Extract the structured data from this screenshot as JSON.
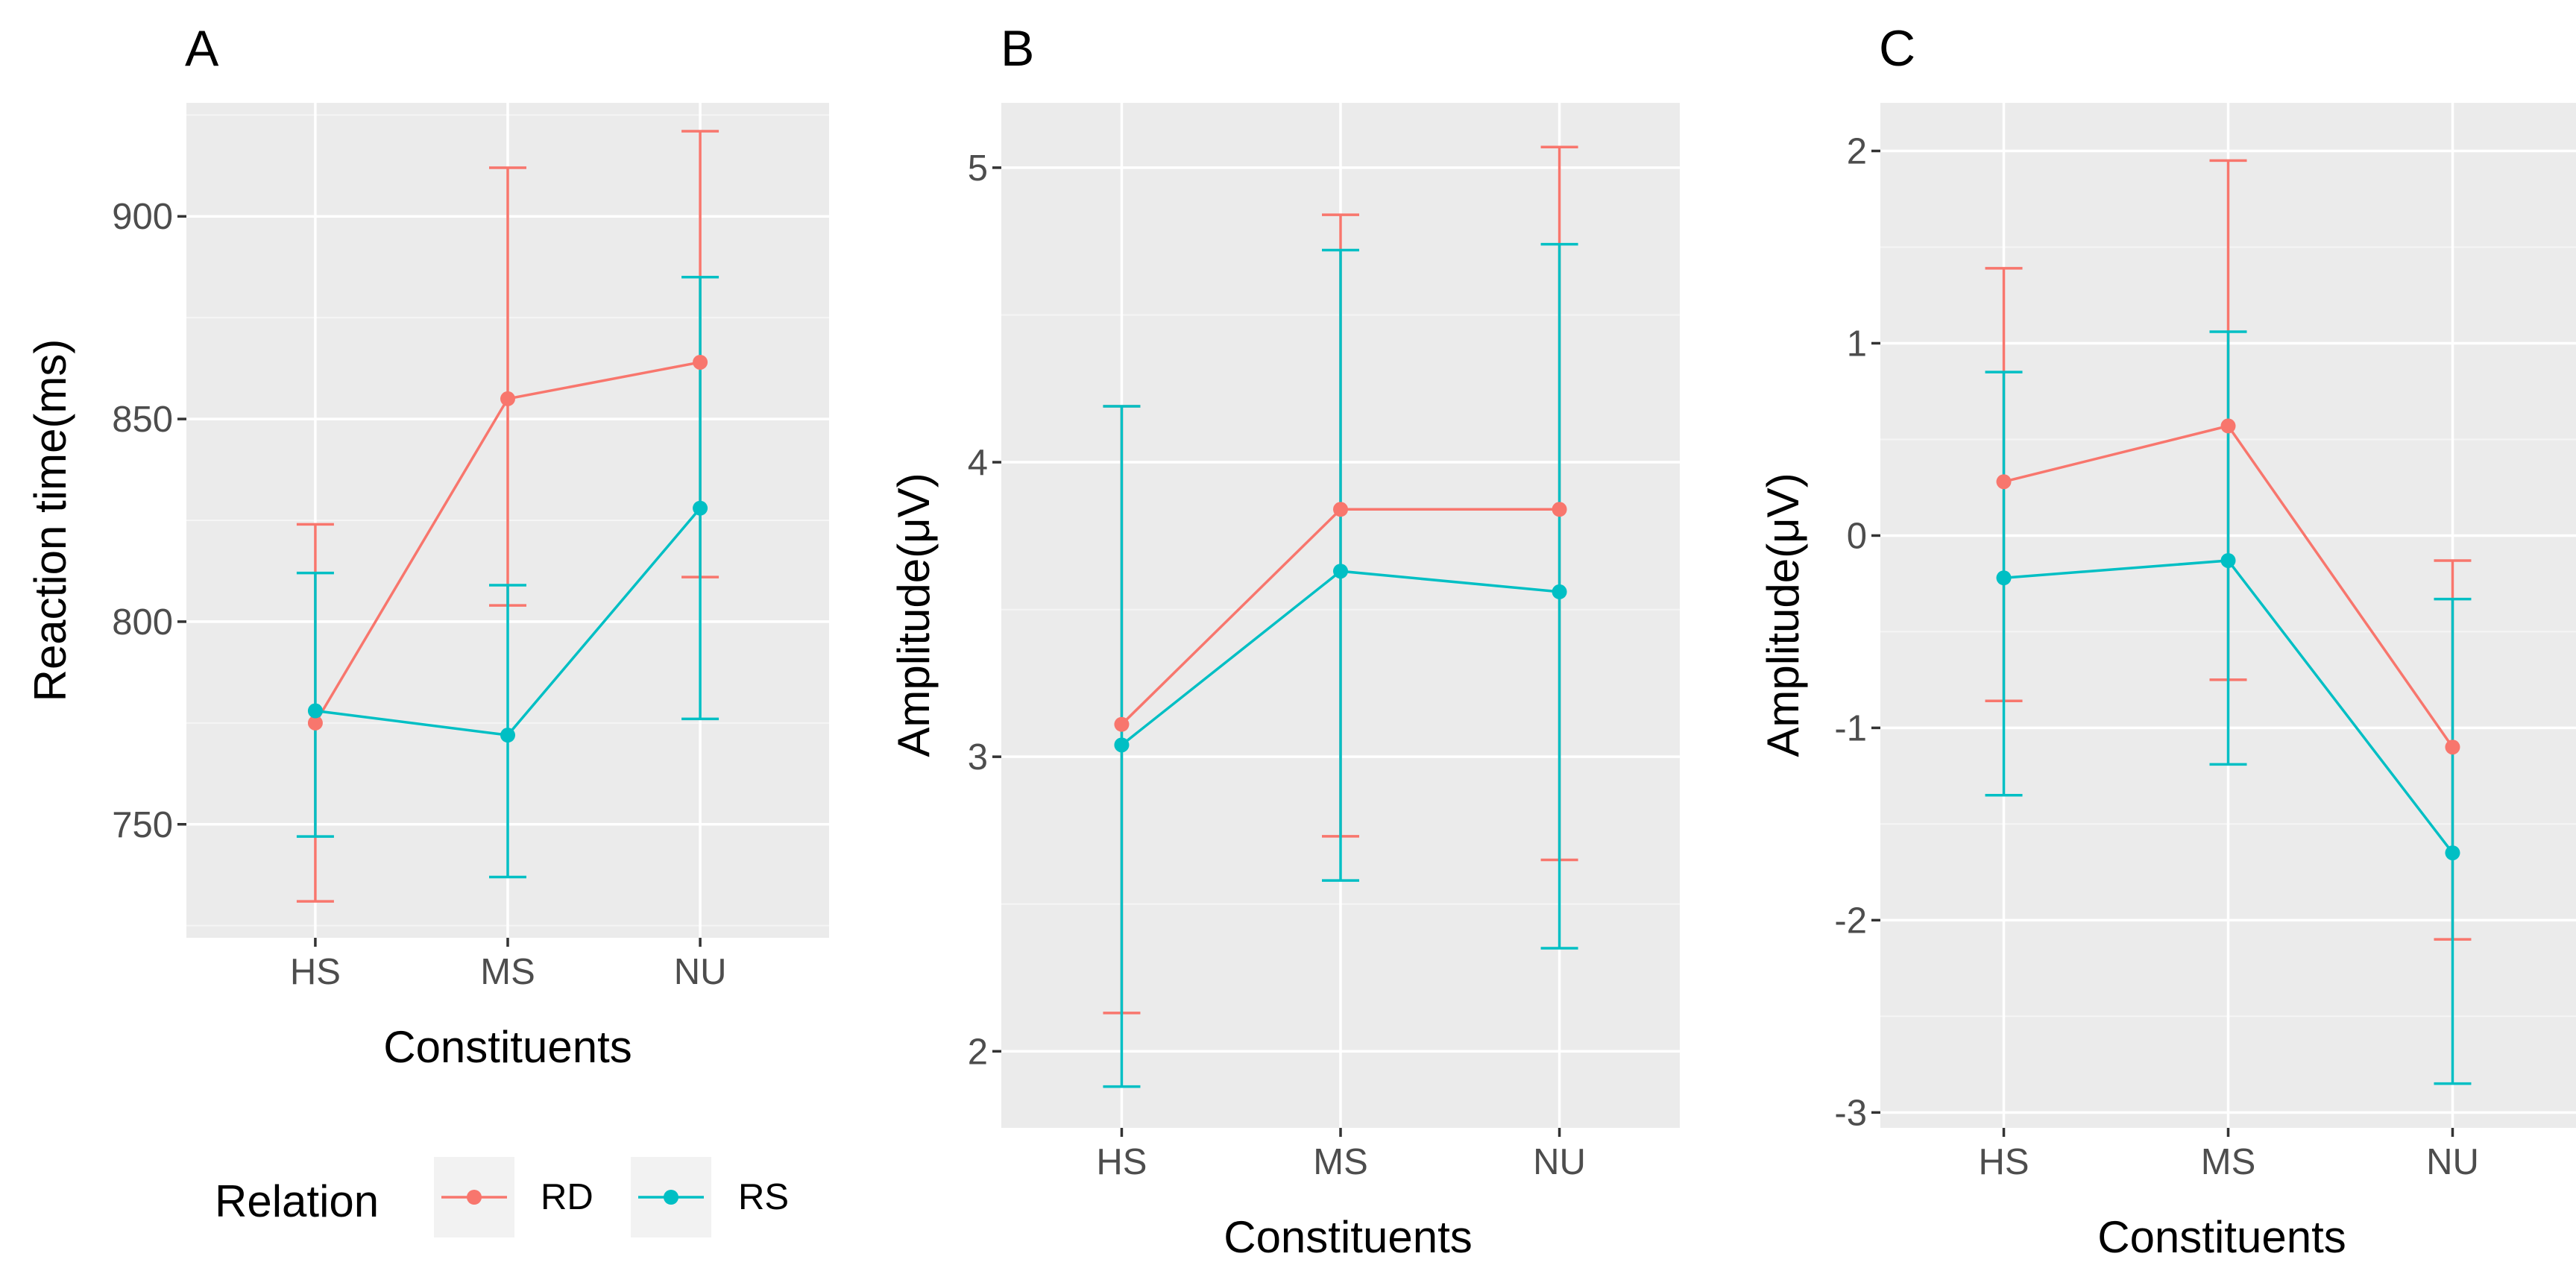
{
  "legend": {
    "title": "Relation",
    "entries": [
      {
        "label": "RD",
        "color": "#F8766D"
      },
      {
        "label": "RS",
        "color": "#00BFC4"
      }
    ]
  },
  "chart_data": [
    {
      "type": "line",
      "panel": "A",
      "categories": [
        "HS",
        "MS",
        "NU"
      ],
      "xlabel": "Constituents",
      "ylabel": "Reaction time(ms)",
      "ylim": [
        722,
        928
      ],
      "yticks": [
        750,
        800,
        850,
        900
      ],
      "series": [
        {
          "name": "RD",
          "values": [
            775,
            855,
            864
          ],
          "lower": [
            731,
            804,
            811
          ],
          "upper": [
            824,
            912,
            921
          ]
        },
        {
          "name": "RS",
          "values": [
            778,
            772,
            828
          ],
          "lower": [
            747,
            737,
            776
          ],
          "upper": [
            812,
            809,
            885
          ]
        }
      ]
    },
    {
      "type": "line",
      "panel": "B",
      "categories": [
        "HS",
        "MS",
        "NU"
      ],
      "xlabel": "Constituents",
      "ylabel": "Amplitude(μV)",
      "ylim": [
        1.74,
        5.22
      ],
      "yticks": [
        2,
        3,
        4,
        5
      ],
      "series": [
        {
          "name": "RD",
          "values": [
            3.11,
            3.84,
            3.84
          ],
          "lower": [
            2.13,
            2.73,
            2.65
          ],
          "upper": [
            4.19,
            4.84,
            5.07
          ]
        },
        {
          "name": "RS",
          "values": [
            3.04,
            3.63,
            3.56
          ],
          "lower": [
            1.88,
            2.58,
            2.35
          ],
          "upper": [
            4.19,
            4.72,
            4.74
          ]
        }
      ]
    },
    {
      "type": "line",
      "panel": "C",
      "categories": [
        "HS",
        "MS",
        "NU"
      ],
      "xlabel": "Constituents",
      "ylabel": "Amplitude(μV)",
      "ylim": [
        -3.08,
        2.25
      ],
      "yticks": [
        -3,
        -2,
        -1,
        0,
        1,
        2
      ],
      "series": [
        {
          "name": "RD",
          "values": [
            0.28,
            0.57,
            -1.1
          ],
          "lower": [
            -0.86,
            -0.75,
            -2.1
          ],
          "upper": [
            1.39,
            1.95,
            -0.13
          ]
        },
        {
          "name": "RS",
          "values": [
            -0.22,
            -0.13,
            -1.65
          ],
          "lower": [
            -1.35,
            -1.19,
            -2.85
          ],
          "upper": [
            0.85,
            1.06,
            -0.33
          ]
        }
      ]
    }
  ]
}
